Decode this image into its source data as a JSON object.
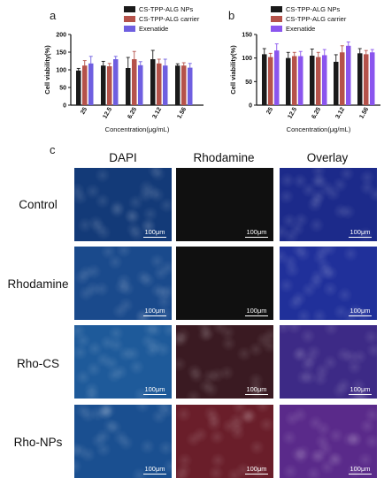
{
  "panels": {
    "a": "a",
    "b": "b",
    "c": "c"
  },
  "chart_data": [
    {
      "type": "bar",
      "panel": "a",
      "ylabel": "Cell viability(%)",
      "xlabel": "Concentration(μg/mL)",
      "categories": [
        "25",
        "12.5",
        "6.25",
        "3.12",
        "1.56"
      ],
      "ylim": [
        0,
        200
      ],
      "yticks": [
        "0",
        "50",
        "100",
        "150",
        "200"
      ],
      "legend_position": "top-right",
      "series": [
        {
          "name": "CS-TPP-ALG NPs",
          "color": "#1a1a1a",
          "values": [
            98,
            112,
            105,
            130,
            112
          ],
          "errors": [
            6,
            12,
            30,
            25,
            5
          ]
        },
        {
          "name": "CS-TPP-ALG carrier",
          "color": "#b5524a",
          "values": [
            112,
            110,
            130,
            118,
            112
          ],
          "errors": [
            14,
            8,
            22,
            12,
            8
          ]
        },
        {
          "name": "Exenatide",
          "color": "#6f5fe0",
          "values": [
            118,
            130,
            113,
            112,
            106
          ],
          "errors": [
            20,
            8,
            10,
            18,
            12
          ]
        }
      ]
    },
    {
      "type": "bar",
      "panel": "b",
      "ylabel": "Cell viability(%)",
      "xlabel": "Concentration(μg/mL)",
      "categories": [
        "25",
        "12.5",
        "6.25",
        "3.12",
        "1.56"
      ],
      "ylim": [
        0,
        150
      ],
      "yticks": [
        "0",
        "50",
        "100",
        "150"
      ],
      "legend_position": "top-right",
      "series": [
        {
          "name": "CS-TPP-ALG NPs",
          "color": "#1a1a1a",
          "values": [
            108,
            100,
            105,
            92,
            110
          ],
          "errors": [
            12,
            12,
            14,
            15,
            10
          ]
        },
        {
          "name": "CS-TPP-ALG carrier",
          "color": "#b5524a",
          "values": [
            102,
            104,
            102,
            112,
            108
          ],
          "errors": [
            8,
            8,
            10,
            14,
            8
          ]
        },
        {
          "name": "Exenatide",
          "color": "#8a55ee",
          "values": [
            116,
            104,
            106,
            126,
            112
          ],
          "errors": [
            14,
            10,
            12,
            8,
            6
          ]
        }
      ]
    }
  ],
  "microscopy": {
    "columns": [
      "DAPI",
      "Rhodamine",
      "Overlay"
    ],
    "rows": [
      "Control",
      "Rhodamine",
      "Rho-CS",
      "Rho-NPs"
    ],
    "scale_bar": "100μm",
    "tints": [
      [
        "#133a78",
        "#101010",
        "#1c2a8a"
      ],
      [
        "#1a4a8c",
        "#101010",
        "#20309a"
      ],
      [
        "#1e5a9a",
        "#3a1a22",
        "#3d2a86"
      ],
      [
        "#1a4f90",
        "#6a1e2a",
        "#5a2a8a"
      ]
    ]
  }
}
